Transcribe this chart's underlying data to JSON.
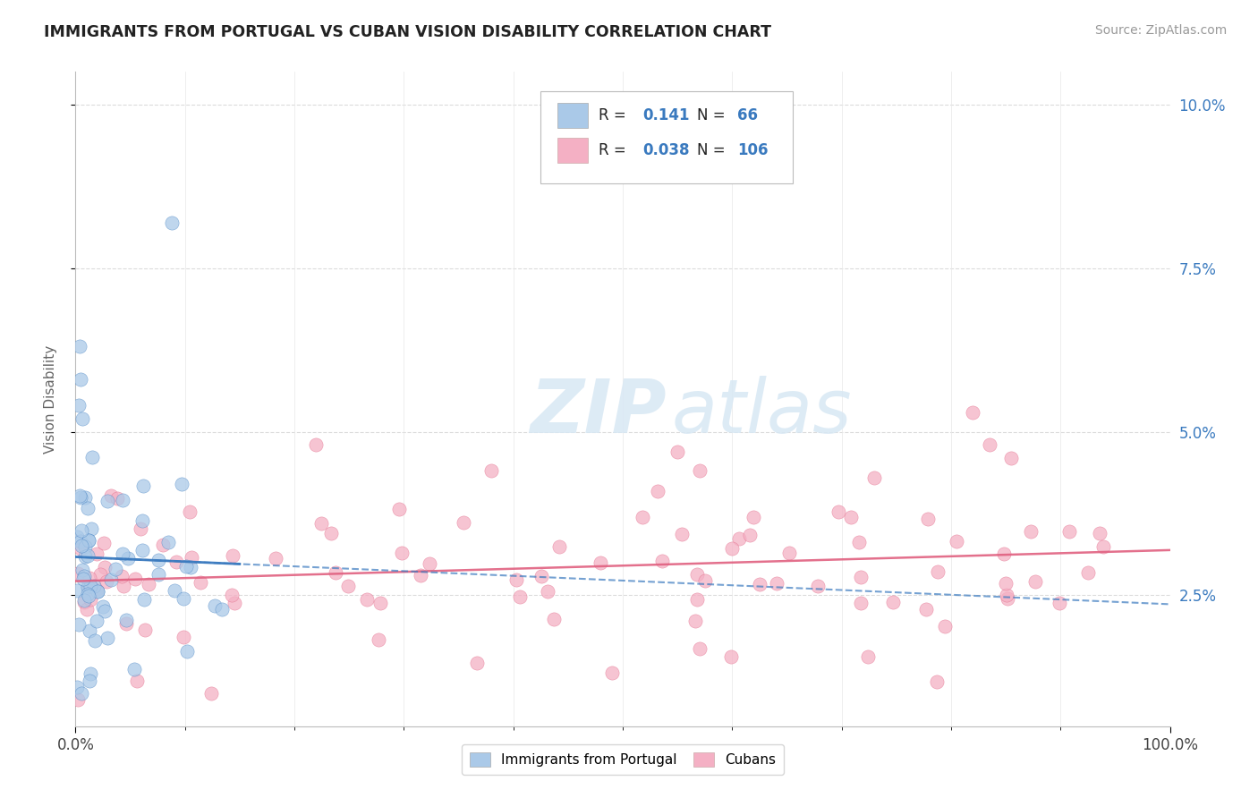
{
  "title": "IMMIGRANTS FROM PORTUGAL VS CUBAN VISION DISABILITY CORRELATION CHART",
  "source": "Source: ZipAtlas.com",
  "ylabel": "Vision Disability",
  "xlim": [
    0,
    1.0
  ],
  "ylim": [
    0.005,
    0.105
  ],
  "ytick_labels": [
    "2.5%",
    "5.0%",
    "7.5%",
    "10.0%"
  ],
  "ytick_vals": [
    0.025,
    0.05,
    0.075,
    0.1
  ],
  "color_blue": "#aac9e8",
  "color_pink": "#f4b0c4",
  "color_blue_dark": "#3a7abf",
  "color_blue_line": "#3a7abf",
  "color_pink_line": "#e06080",
  "background": "#ffffff",
  "grid_color": "#cccccc",
  "watermark_zip": "ZIP",
  "watermark_atlas": "atlas"
}
